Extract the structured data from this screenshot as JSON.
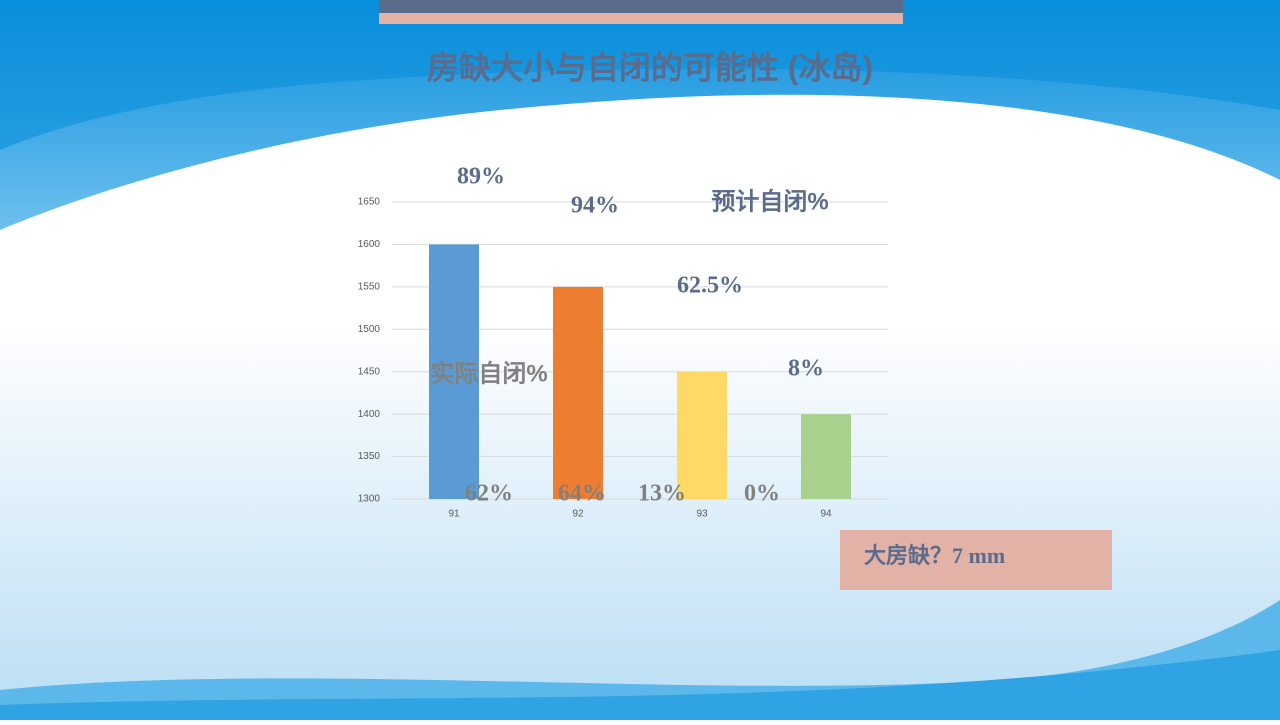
{
  "chart_data": {
    "type": "bar",
    "title": "房缺大小与自闭的可能性 (冰岛)",
    "categories": [
      "91",
      "92",
      "93",
      "94"
    ],
    "values": [
      1600,
      1550,
      1450,
      1400
    ],
    "colors": [
      "#5b9bd5",
      "#ed7d31",
      "#ffd966",
      "#a9d18e"
    ],
    "ylim": [
      1300,
      1650
    ],
    "yticks": [
      1300,
      1350,
      1400,
      1450,
      1500,
      1550,
      1600,
      1650
    ],
    "grid": true,
    "annotations": {
      "expected_label": "预计自闭%",
      "expected": [
        "89%",
        "94%",
        "62.5%",
        "8%"
      ],
      "actual_label": "实际自闭%",
      "actual": [
        "62%",
        "64%",
        "13%",
        "0%"
      ]
    },
    "callout": "大房缺？7 mm"
  }
}
